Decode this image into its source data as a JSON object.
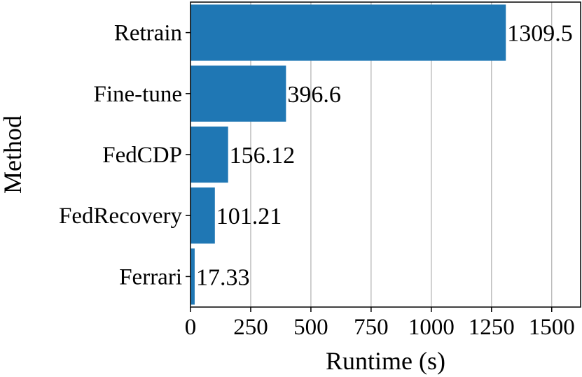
{
  "chart_data": {
    "type": "bar",
    "orientation": "horizontal",
    "title": "",
    "xlabel": "Runtime (s)",
    "ylabel": "Method",
    "categories": [
      "Retrain",
      "Fine-tune",
      "FedCDP",
      "FedRecovery",
      "Ferrari"
    ],
    "values": [
      1309.5,
      396.6,
      156.12,
      101.21,
      17.33
    ],
    "data_labels": [
      "1309.5",
      "396.6",
      "156.12",
      "101.21",
      "17.33"
    ],
    "xlim": [
      0,
      1620
    ],
    "xticks": [
      0,
      250,
      500,
      750,
      1000,
      1250,
      1500
    ],
    "xtick_labels": [
      "0",
      "250",
      "500",
      "750",
      "1000",
      "1250",
      "1500"
    ],
    "grid": "vertical",
    "bar_color": "#1f77b4",
    "grid_color": "#b0b0b0"
  }
}
